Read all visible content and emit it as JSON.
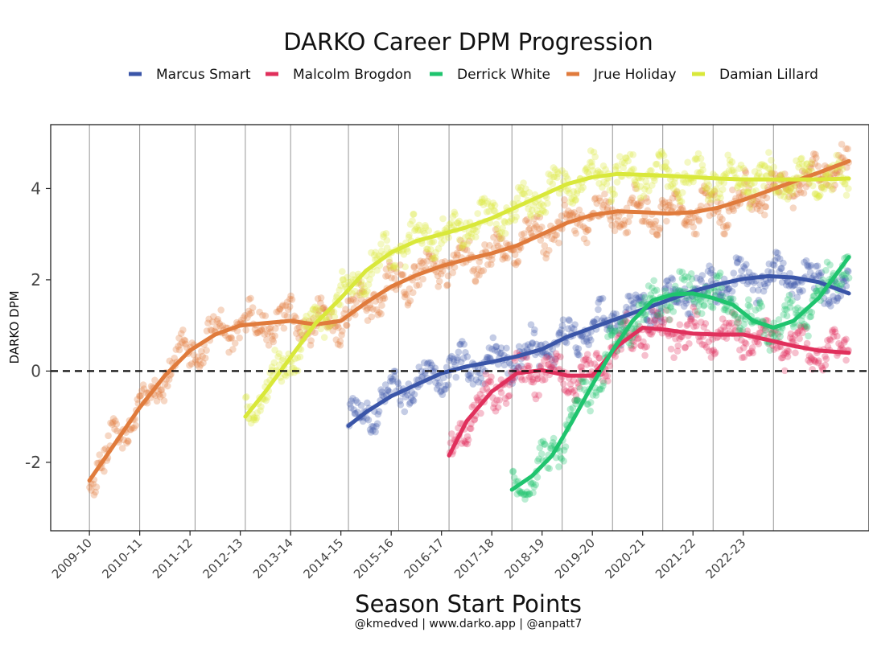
{
  "chart_data": {
    "type": "scatter",
    "title": "DARKO Career DPM Progression",
    "xlabel": "Season Start Points",
    "ylabel": "DARKO DPM",
    "caption": "@kmedved | www.darko.app | @anpatt7",
    "ylim": [
      -3.5,
      5.4
    ],
    "xlim": [
      2008.23,
      2024.5
    ],
    "yticks": [
      -2,
      0,
      2,
      4
    ],
    "ytick_labels": [
      "-2",
      "0",
      "2",
      "4"
    ],
    "x_tick_positions": [
      2009,
      2010,
      2011,
      2012,
      2013,
      2014,
      2015,
      2016,
      2017,
      2018,
      2019,
      2020,
      2021,
      2022
    ],
    "x_tick_labels": [
      "2009-10",
      "2010-11",
      "2011-12",
      "2012-13",
      "2013-14",
      "2014-15",
      "2015-16",
      "2016-17",
      "2017-18",
      "2018-19",
      "2019-20",
      "2020-21",
      "2021-22",
      "2022-23"
    ],
    "season_starts": [
      2009.0,
      2010.0,
      2011.1,
      2012.1,
      2013.0,
      2014.15,
      2015.15,
      2016.15,
      2017.4,
      2018.4,
      2019.4,
      2020.4,
      2021.4,
      2022.6
    ],
    "reference_line": 0,
    "legend_position": "top",
    "series": [
      {
        "name": "Marcus Smart",
        "color": "#3a55a8",
        "x_start": 2014.15,
        "x_end": 2024.1,
        "smooth_x": [
          2014.15,
          2014.5,
          2015,
          2015.5,
          2016,
          2016.5,
          2017,
          2017.5,
          2018,
          2018.5,
          2019,
          2019.5,
          2020,
          2020.5,
          2021,
          2021.5,
          2022,
          2022.5,
          2023,
          2023.5,
          2024.1
        ],
        "smooth_y": [
          -1.2,
          -0.9,
          -0.55,
          -0.3,
          -0.05,
          0.1,
          0.2,
          0.32,
          0.48,
          0.75,
          0.95,
          1.15,
          1.35,
          1.55,
          1.75,
          1.9,
          2.02,
          2.08,
          2.05,
          1.95,
          1.7
        ]
      },
      {
        "name": "Malcolm Brogdon",
        "color": "#e0305c",
        "x_start": 2016.15,
        "x_end": 2024.1,
        "smooth_x": [
          2016.15,
          2016.5,
          2017,
          2017.5,
          2018,
          2018.5,
          2019,
          2019.5,
          2020,
          2020.5,
          2021,
          2021.5,
          2022,
          2022.5,
          2023,
          2023.5,
          2024.1
        ],
        "smooth_y": [
          -1.85,
          -1.1,
          -0.45,
          -0.05,
          0.02,
          -0.1,
          -0.1,
          0.55,
          0.95,
          0.9,
          0.82,
          0.8,
          0.8,
          0.68,
          0.55,
          0.45,
          0.4
        ]
      },
      {
        "name": "Derrick White",
        "color": "#1fc46e",
        "x_start": 2017.4,
        "x_end": 2024.1,
        "smooth_x": [
          2017.4,
          2017.8,
          2018.2,
          2018.6,
          2019,
          2019.4,
          2019.8,
          2020.2,
          2020.6,
          2021,
          2021.4,
          2021.8,
          2022.2,
          2022.6,
          2023,
          2023.5,
          2024.1
        ],
        "smooth_y": [
          -2.6,
          -2.3,
          -1.85,
          -1.1,
          -0.3,
          0.45,
          1.1,
          1.55,
          1.68,
          1.7,
          1.6,
          1.45,
          1.1,
          0.95,
          1.1,
          1.6,
          2.5
        ]
      },
      {
        "name": "Jrue Holiday",
        "color": "#e07b3c",
        "x_start": 2009.0,
        "x_end": 2024.1,
        "smooth_x": [
          2009,
          2009.5,
          2010,
          2010.5,
          2011,
          2011.5,
          2012,
          2012.5,
          2013,
          2013.5,
          2014,
          2014.5,
          2015,
          2015.5,
          2016,
          2016.5,
          2017,
          2017.5,
          2018,
          2018.5,
          2019,
          2019.5,
          2020,
          2020.5,
          2021,
          2021.5,
          2022,
          2022.5,
          2023,
          2023.5,
          2024.1
        ],
        "smooth_y": [
          -2.4,
          -1.6,
          -0.8,
          -0.1,
          0.45,
          0.8,
          1.0,
          1.05,
          1.1,
          1.02,
          1.1,
          1.5,
          1.85,
          2.1,
          2.3,
          2.45,
          2.58,
          2.75,
          3.0,
          3.25,
          3.42,
          3.5,
          3.48,
          3.45,
          3.48,
          3.58,
          3.75,
          3.95,
          4.15,
          4.35,
          4.6
        ]
      },
      {
        "name": "Damian Lillard",
        "color": "#d9e83a",
        "x_start": 2012.1,
        "x_end": 2024.1,
        "smooth_x": [
          2012.1,
          2012.5,
          2013,
          2013.5,
          2014,
          2014.5,
          2015,
          2015.5,
          2016,
          2016.5,
          2017,
          2017.5,
          2018,
          2018.5,
          2019,
          2019.5,
          2020,
          2020.5,
          2021,
          2021.5,
          2022,
          2022.5,
          2023,
          2023.5,
          2024.1
        ],
        "smooth_y": [
          -1.0,
          -0.45,
          0.3,
          1.05,
          1.6,
          2.2,
          2.6,
          2.85,
          3.0,
          3.15,
          3.35,
          3.6,
          3.85,
          4.1,
          4.25,
          4.32,
          4.3,
          4.28,
          4.25,
          4.22,
          4.2,
          4.2,
          4.2,
          4.2,
          4.22
        ]
      }
    ]
  }
}
